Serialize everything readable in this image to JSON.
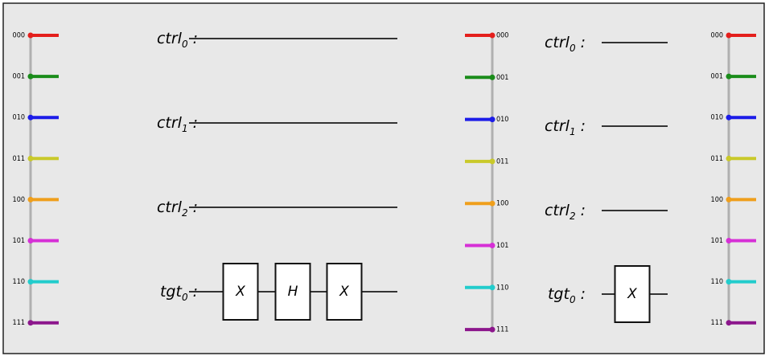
{
  "state_colors": [
    "#e41f1c",
    "#1a8c1a",
    "#1c1ce8",
    "#c9c92a",
    "#ef9f1c",
    "#d630d6",
    "#22cccc",
    "#8c168c"
  ],
  "legends": [
    {
      "states": [
        "000",
        "001",
        "010",
        "011",
        "100",
        "101",
        "110",
        "111"
      ]
    },
    {
      "states": [
        "000",
        "001",
        "010",
        "011",
        "100",
        "101",
        "110",
        "111"
      ]
    },
    {
      "states": [
        "000",
        "001",
        "010",
        "011",
        "100",
        "101",
        "110",
        "111"
      ]
    }
  ],
  "circuits": [
    {
      "separator": ":",
      "wires": [
        {
          "name": "ctrl",
          "index": "0"
        },
        {
          "name": "ctrl",
          "index": "1"
        },
        {
          "name": "ctrl",
          "index": "2"
        },
        {
          "name": "tgt",
          "index": "0"
        }
      ],
      "gates": [
        "X",
        "H",
        "X"
      ]
    },
    {
      "separator": ":",
      "wires": [
        {
          "name": "ctrl",
          "index": "0"
        },
        {
          "name": "ctrl",
          "index": "1"
        },
        {
          "name": "ctrl",
          "index": "2"
        },
        {
          "name": "tgt",
          "index": "0"
        }
      ],
      "gates": [
        "X"
      ]
    }
  ]
}
